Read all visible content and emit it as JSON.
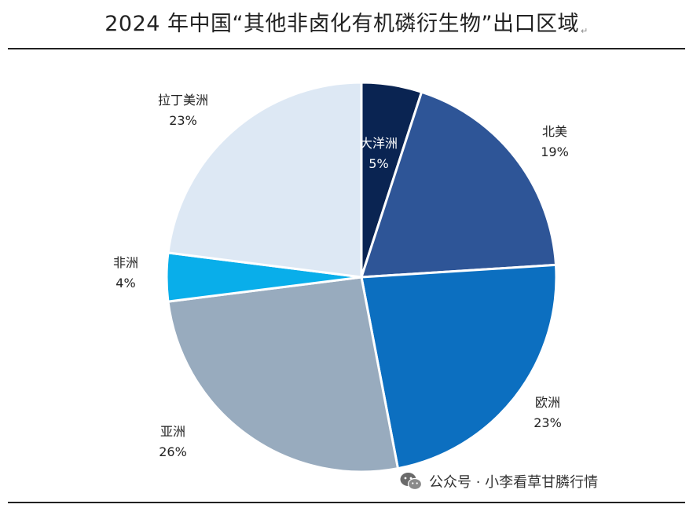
{
  "title": "2024 年中国“其他非卤化有机磷衍生物”出口区域",
  "title_mark": "↵",
  "watermark": "公众号 · 小李看草甘膦行情",
  "chart_data": {
    "type": "pie",
    "title": "2024 年中国“其他非卤化有机磷衍生物”出口区域",
    "start_angle_deg": 0,
    "direction": "clockwise",
    "slices": [
      {
        "label": "大洋洲",
        "pct_label": "5%",
        "value": 5,
        "color": "#0a2452",
        "label_inside": true
      },
      {
        "label": "北美",
        "pct_label": "19%",
        "value": 19,
        "color": "#2e5597",
        "label_inside": false
      },
      {
        "label": "欧洲",
        "pct_label": "23%",
        "value": 23,
        "color": "#0c6fc0",
        "label_inside": false
      },
      {
        "label": "亚洲",
        "pct_label": "26%",
        "value": 26,
        "color": "#98abbe",
        "label_inside": false
      },
      {
        "label": "非洲",
        "pct_label": "4%",
        "value": 4,
        "color": "#09aeea",
        "label_inside": false
      },
      {
        "label": "拉丁美洲",
        "pct_label": "23%",
        "value": 23,
        "color": "#dde8f4",
        "label_inside": false
      }
    ]
  }
}
